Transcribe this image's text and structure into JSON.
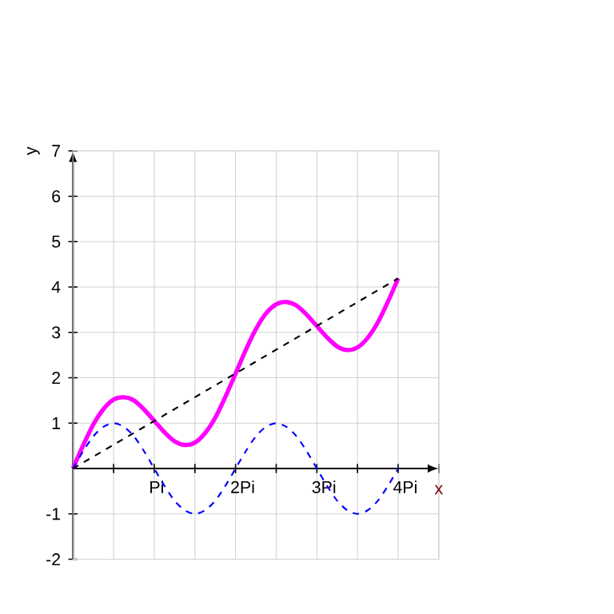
{
  "chart_data": {
    "type": "line",
    "xlabel": "x",
    "ylabel": "y",
    "xlim": [
      0,
      4.5
    ],
    "ylim": [
      -2,
      7
    ],
    "xticks": [
      {
        "value": 0.5,
        "label": null
      },
      {
        "value": 1,
        "label": "Pi"
      },
      {
        "value": 1.5,
        "label": null
      },
      {
        "value": 2,
        "label": "2Pi"
      },
      {
        "value": 2.5,
        "label": null
      },
      {
        "value": 3,
        "label": "3Pi"
      },
      {
        "value": 3.5,
        "label": null
      },
      {
        "value": 4,
        "label": "4Pi"
      },
      {
        "value": 4.5,
        "label": null
      }
    ],
    "yticks": [
      -2,
      -1,
      1,
      2,
      3,
      4,
      5,
      6,
      7
    ],
    "grid": true,
    "marker": "none",
    "series": [
      {
        "color": "#ff00ff",
        "line_style": "solid",
        "x": [
          0,
          0.125,
          0.25,
          0.375,
          0.5,
          0.625,
          0.75,
          0.875,
          1,
          1.125,
          1.25,
          1.375,
          1.5,
          1.625,
          1.75,
          1.875,
          2,
          2.125,
          2.25,
          2.375,
          2.5,
          2.625,
          2.75,
          2.875,
          3,
          3.125,
          3.25,
          3.375,
          3.5,
          3.625,
          3.75,
          3.875,
          4
        ],
        "values": [
          0,
          0.51,
          0.97,
          1.31,
          1.52,
          1.57,
          1.5,
          1.3,
          1.05,
          0.8,
          0.6,
          0.52,
          0.57,
          0.78,
          1.12,
          1.58,
          2.09,
          2.61,
          3.07,
          3.42,
          3.62,
          3.67,
          3.59,
          3.39,
          3.14,
          2.89,
          2.69,
          2.61,
          2.67,
          2.88,
          3.22,
          3.68,
          4.19
        ]
      },
      {
        "color": "#0000ff",
        "line_style": "dashed",
        "x": [
          0,
          0.125,
          0.25,
          0.375,
          0.5,
          0.625,
          0.75,
          0.875,
          1,
          1.125,
          1.25,
          1.375,
          1.5,
          1.625,
          1.75,
          1.875,
          2,
          2.125,
          2.25,
          2.375,
          2.5,
          2.625,
          2.75,
          2.875,
          3,
          3.125,
          3.25,
          3.375,
          3.5,
          3.625,
          3.75,
          3.875,
          4
        ],
        "values": [
          0,
          0.38,
          0.71,
          0.92,
          1,
          0.92,
          0.71,
          0.38,
          0,
          -0.38,
          -0.71,
          -0.92,
          -1,
          -0.92,
          -0.71,
          -0.38,
          0,
          0.38,
          0.71,
          0.92,
          1,
          0.92,
          0.71,
          0.38,
          0,
          -0.38,
          -0.71,
          -0.92,
          -1,
          -0.92,
          -0.71,
          -0.38,
          0
        ]
      },
      {
        "color": "#000000",
        "line_style": "dashed",
        "x": [
          0,
          4
        ],
        "values": [
          0,
          4.19
        ]
      }
    ]
  }
}
